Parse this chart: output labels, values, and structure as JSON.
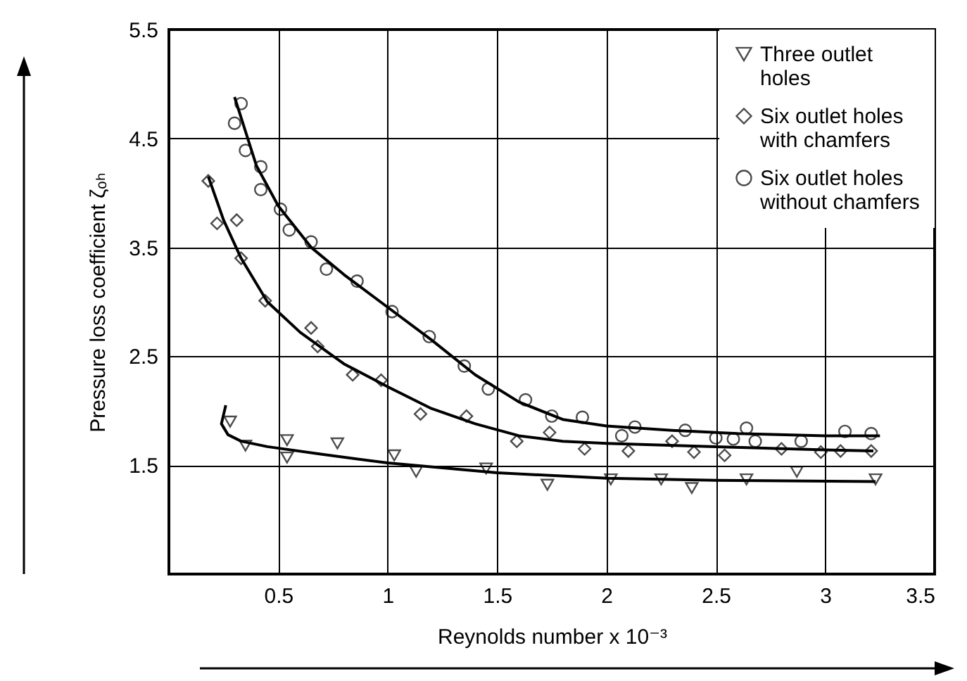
{
  "chart_data": {
    "type": "scatter",
    "xlabel": "Reynolds number x 10⁻³",
    "ylabel": "Pressure loss coefficient ζₒₕ",
    "xlim": [
      0,
      3.5
    ],
    "ylim": [
      0.5,
      5.5
    ],
    "xticks": [
      {
        "value": 0,
        "label": null
      },
      0.5,
      1.0,
      1.5,
      2.0,
      2.5,
      3.0,
      3.5
    ],
    "yticks": [
      1.5,
      2.5,
      3.5,
      4.5,
      5.5
    ],
    "grid": true,
    "legend": "top right",
    "series": [
      {
        "name": "Three outlet holes",
        "type": "scatter",
        "marker": "triangle",
        "color": "#000000",
        "x": [
          0.28,
          0.35,
          0.54,
          0.54,
          0.77,
          1.03,
          1.13,
          1.45,
          1.73,
          2.02,
          2.25,
          2.39,
          2.64,
          2.87,
          3.23
        ],
        "values": [
          1.9,
          1.68,
          1.73,
          1.57,
          1.7,
          1.59,
          1.44,
          1.47,
          1.32,
          1.37,
          1.37,
          1.29,
          1.37,
          1.44,
          1.37
        ]
      },
      {
        "name": "Six outlet holes with chamfers",
        "type": "scatter",
        "marker": "diamond",
        "color": "#000000",
        "x": [
          0.18,
          0.22,
          0.31,
          0.33,
          0.44,
          0.65,
          0.68,
          0.84,
          0.97,
          1.15,
          1.36,
          1.59,
          1.74,
          1.9,
          2.1,
          2.3,
          2.4,
          2.54,
          2.8,
          2.98,
          3.07,
          3.21
        ],
        "values": [
          4.11,
          3.72,
          3.75,
          3.4,
          3.01,
          2.76,
          2.59,
          2.33,
          2.28,
          1.97,
          1.95,
          1.72,
          1.8,
          1.65,
          1.63,
          1.72,
          1.62,
          1.59,
          1.65,
          1.62,
          1.63,
          1.63
        ]
      },
      {
        "name": "Six outlet holes without chamfers",
        "type": "scatter",
        "marker": "circle",
        "color": "#000000",
        "x": [
          0.33,
          0.3,
          0.35,
          0.42,
          0.42,
          0.51,
          0.55,
          0.65,
          0.72,
          0.86,
          1.02,
          1.19,
          1.35,
          1.46,
          1.63,
          1.75,
          1.89,
          2.07,
          2.13,
          2.36,
          2.5,
          2.58,
          2.64,
          2.68,
          2.89,
          3.09,
          3.21
        ],
        "values": [
          4.82,
          4.64,
          4.39,
          4.24,
          4.03,
          3.85,
          3.66,
          3.55,
          3.3,
          3.19,
          2.91,
          2.68,
          2.41,
          2.2,
          2.1,
          1.95,
          1.94,
          1.77,
          1.85,
          1.82,
          1.75,
          1.74,
          1.84,
          1.72,
          1.72,
          1.81,
          1.79
        ]
      },
      {
        "type": "line",
        "color": "#000000",
        "x": [
          0.26,
          0.24,
          0.27,
          0.33,
          0.45,
          0.7,
          1.0,
          1.5,
          2.0,
          2.5,
          3.23
        ],
        "values": [
          2.05,
          1.88,
          1.78,
          1.72,
          1.67,
          1.6,
          1.52,
          1.43,
          1.38,
          1.36,
          1.35
        ]
      },
      {
        "type": "line",
        "color": "#000000",
        "x": [
          0.18,
          0.25,
          0.33,
          0.45,
          0.6,
          0.8,
          1.0,
          1.2,
          1.4,
          1.6,
          1.8,
          2.0,
          2.5,
          3.0,
          3.22
        ],
        "values": [
          4.15,
          3.75,
          3.4,
          3.0,
          2.72,
          2.43,
          2.22,
          2.02,
          1.88,
          1.77,
          1.72,
          1.7,
          1.67,
          1.64,
          1.63
        ]
      },
      {
        "type": "line",
        "color": "#000000",
        "x": [
          0.3,
          0.4,
          0.5,
          0.65,
          0.8,
          1.0,
          1.2,
          1.4,
          1.6,
          1.8,
          2.0,
          2.3,
          2.6,
          3.0,
          3.25
        ],
        "values": [
          4.88,
          4.25,
          3.88,
          3.5,
          3.25,
          2.95,
          2.65,
          2.33,
          2.08,
          1.92,
          1.86,
          1.82,
          1.79,
          1.77,
          1.77
        ]
      }
    ]
  }
}
